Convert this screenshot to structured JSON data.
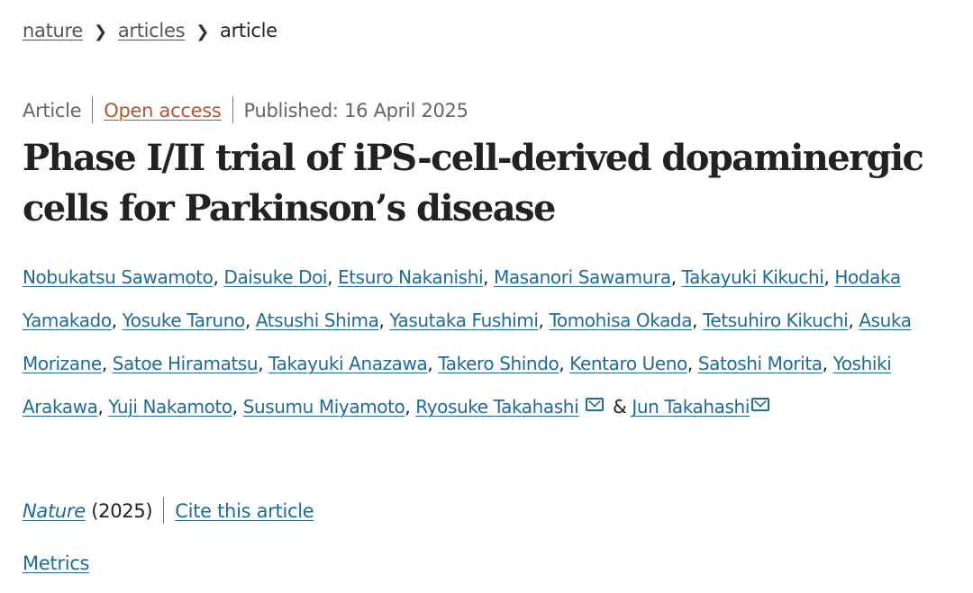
{
  "breadcrumb": {
    "items": [
      "nature",
      "articles",
      "article"
    ]
  },
  "meta": {
    "type": "Article",
    "access": "Open access",
    "published": "Published: 16 April 2025"
  },
  "title": "Phase I/II trial of iPS-cell-derived dopaminergic cells for Parkinson’s disease",
  "authors": [
    "Nobukatsu Sawamoto",
    "Daisuke Doi",
    "Etsuro Nakanishi",
    "Masanori Sawamura",
    "Takayuki Kikuchi",
    "Hodaka Yamakado",
    "Yosuke Taruno",
    "Atsushi Shima",
    "Yasutaka Fushimi",
    "Tomohisa Okada",
    "Tetsuhiro Kikuchi",
    "Asuka Morizane",
    "Satoe Hiramatsu",
    "Takayuki Anazawa",
    "Takero Shindo",
    "Kentaro Ueno",
    "Satoshi Morita",
    "Yoshiki Arakawa",
    "Yuji Nakamoto",
    "Susumu Miyamoto",
    "Ryosuke Takahashi",
    "Jun Takahashi"
  ],
  "authors_conjunction": "&",
  "citation": {
    "journal": "Nature",
    "year": "(2025)",
    "cite_link": "Cite this article"
  },
  "metrics_link": "Metrics",
  "colors": {
    "link": "#1f6b96",
    "open_access": "#b5552b"
  }
}
